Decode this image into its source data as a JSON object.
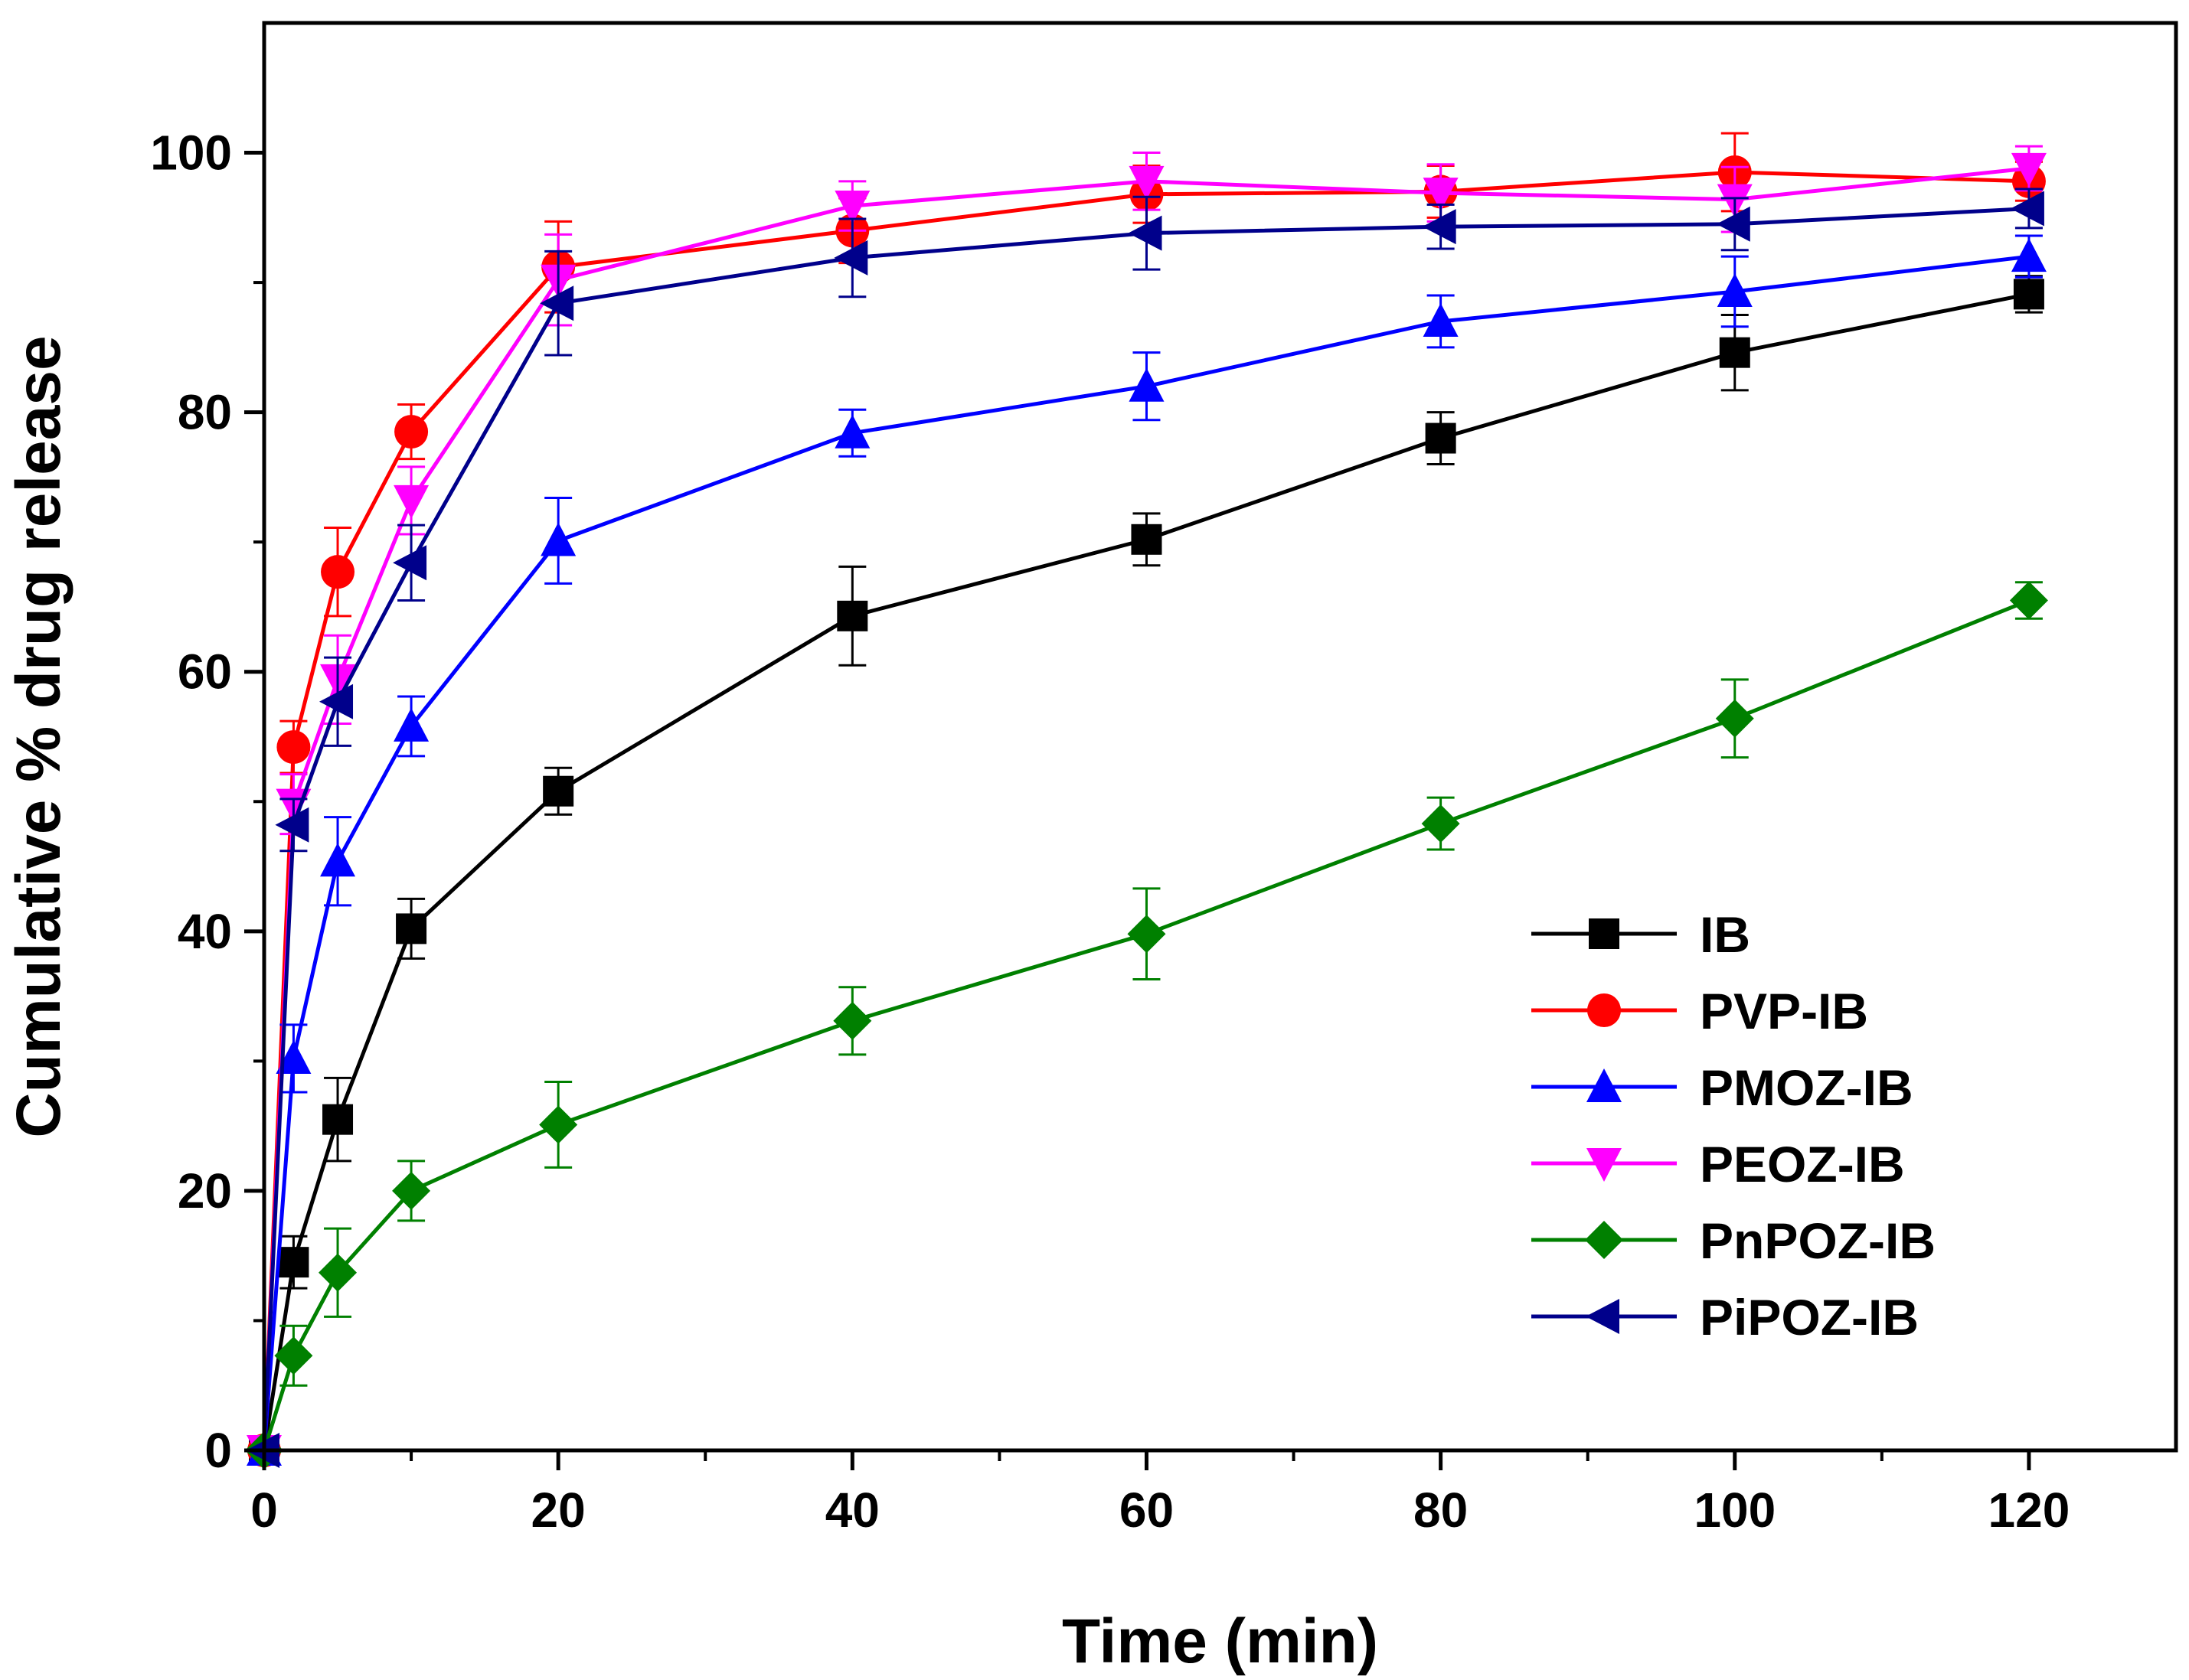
{
  "chart_data": {
    "type": "line",
    "title": "",
    "xlabel": "Time (min)",
    "ylabel": "Cumulative % drug release",
    "xlim": [
      0,
      130
    ],
    "ylim": [
      0,
      110
    ],
    "x_ticks": [
      0,
      20,
      40,
      60,
      80,
      100,
      120
    ],
    "y_ticks": [
      0,
      20,
      40,
      60,
      80,
      100
    ],
    "x_tick_labels": [
      "0",
      "20",
      "40",
      "60",
      "80",
      "100",
      "120"
    ],
    "y_tick_labels": [
      "0",
      "20",
      "40",
      "60",
      "80",
      "100"
    ],
    "grid": false,
    "legend_position": "bottom-right",
    "x": [
      0,
      2,
      5,
      10,
      20,
      40,
      60,
      80,
      100,
      120
    ],
    "series": [
      {
        "name": "IB",
        "color": "#000000",
        "marker": "square",
        "values": [
          0,
          14.5,
          25.5,
          40.2,
          50.8,
          64.3,
          70.2,
          78.0,
          84.6,
          89.1
        ],
        "errors": [
          0,
          2.0,
          3.2,
          2.3,
          1.8,
          3.8,
          2.0,
          2.0,
          2.9,
          1.4
        ]
      },
      {
        "name": "PVP-IB",
        "color": "#ff0000",
        "marker": "circle",
        "values": [
          0,
          54.2,
          67.7,
          78.5,
          91.2,
          94.0,
          96.8,
          97.0,
          98.5,
          97.8
        ],
        "errors": [
          0,
          2.0,
          3.4,
          2.1,
          3.5,
          2.5,
          2.2,
          2.0,
          3.0,
          1.5
        ]
      },
      {
        "name": "PMOZ-IB",
        "color": "#0000ff",
        "marker": "triangle-up",
        "values": [
          0,
          30.2,
          45.4,
          55.8,
          70.1,
          78.4,
          82.0,
          87.0,
          89.3,
          92.0
        ],
        "errors": [
          0,
          2.6,
          3.4,
          2.3,
          3.3,
          1.8,
          2.6,
          2.0,
          2.7,
          1.6
        ]
      },
      {
        "name": "PEOZ-IB",
        "color": "#ff00ff",
        "marker": "triangle-down",
        "values": [
          0,
          49.8,
          59.4,
          73.2,
          90.2,
          95.9,
          97.8,
          96.9,
          96.4,
          98.8
        ],
        "errors": [
          0,
          2.3,
          3.4,
          2.6,
          3.5,
          1.9,
          2.2,
          2.2,
          2.5,
          1.7
        ]
      },
      {
        "name": "PnPOZ-IB",
        "color": "#008000",
        "marker": "diamond",
        "values": [
          0,
          7.3,
          13.7,
          20.0,
          25.1,
          33.1,
          39.8,
          48.3,
          56.4,
          65.5
        ],
        "errors": [
          0,
          2.3,
          3.4,
          2.3,
          3.3,
          2.6,
          3.5,
          2.0,
          3.0,
          1.4
        ]
      },
      {
        "name": "PiPOZ-IB",
        "color": "#00008b",
        "marker": "triangle-left",
        "values": [
          0,
          48.2,
          57.7,
          68.4,
          88.4,
          91.9,
          93.8,
          94.3,
          94.5,
          95.7
        ],
        "errors": [
          0,
          2.0,
          3.4,
          2.9,
          4.0,
          3.0,
          2.8,
          1.7,
          2.0,
          1.5
        ]
      }
    ]
  }
}
